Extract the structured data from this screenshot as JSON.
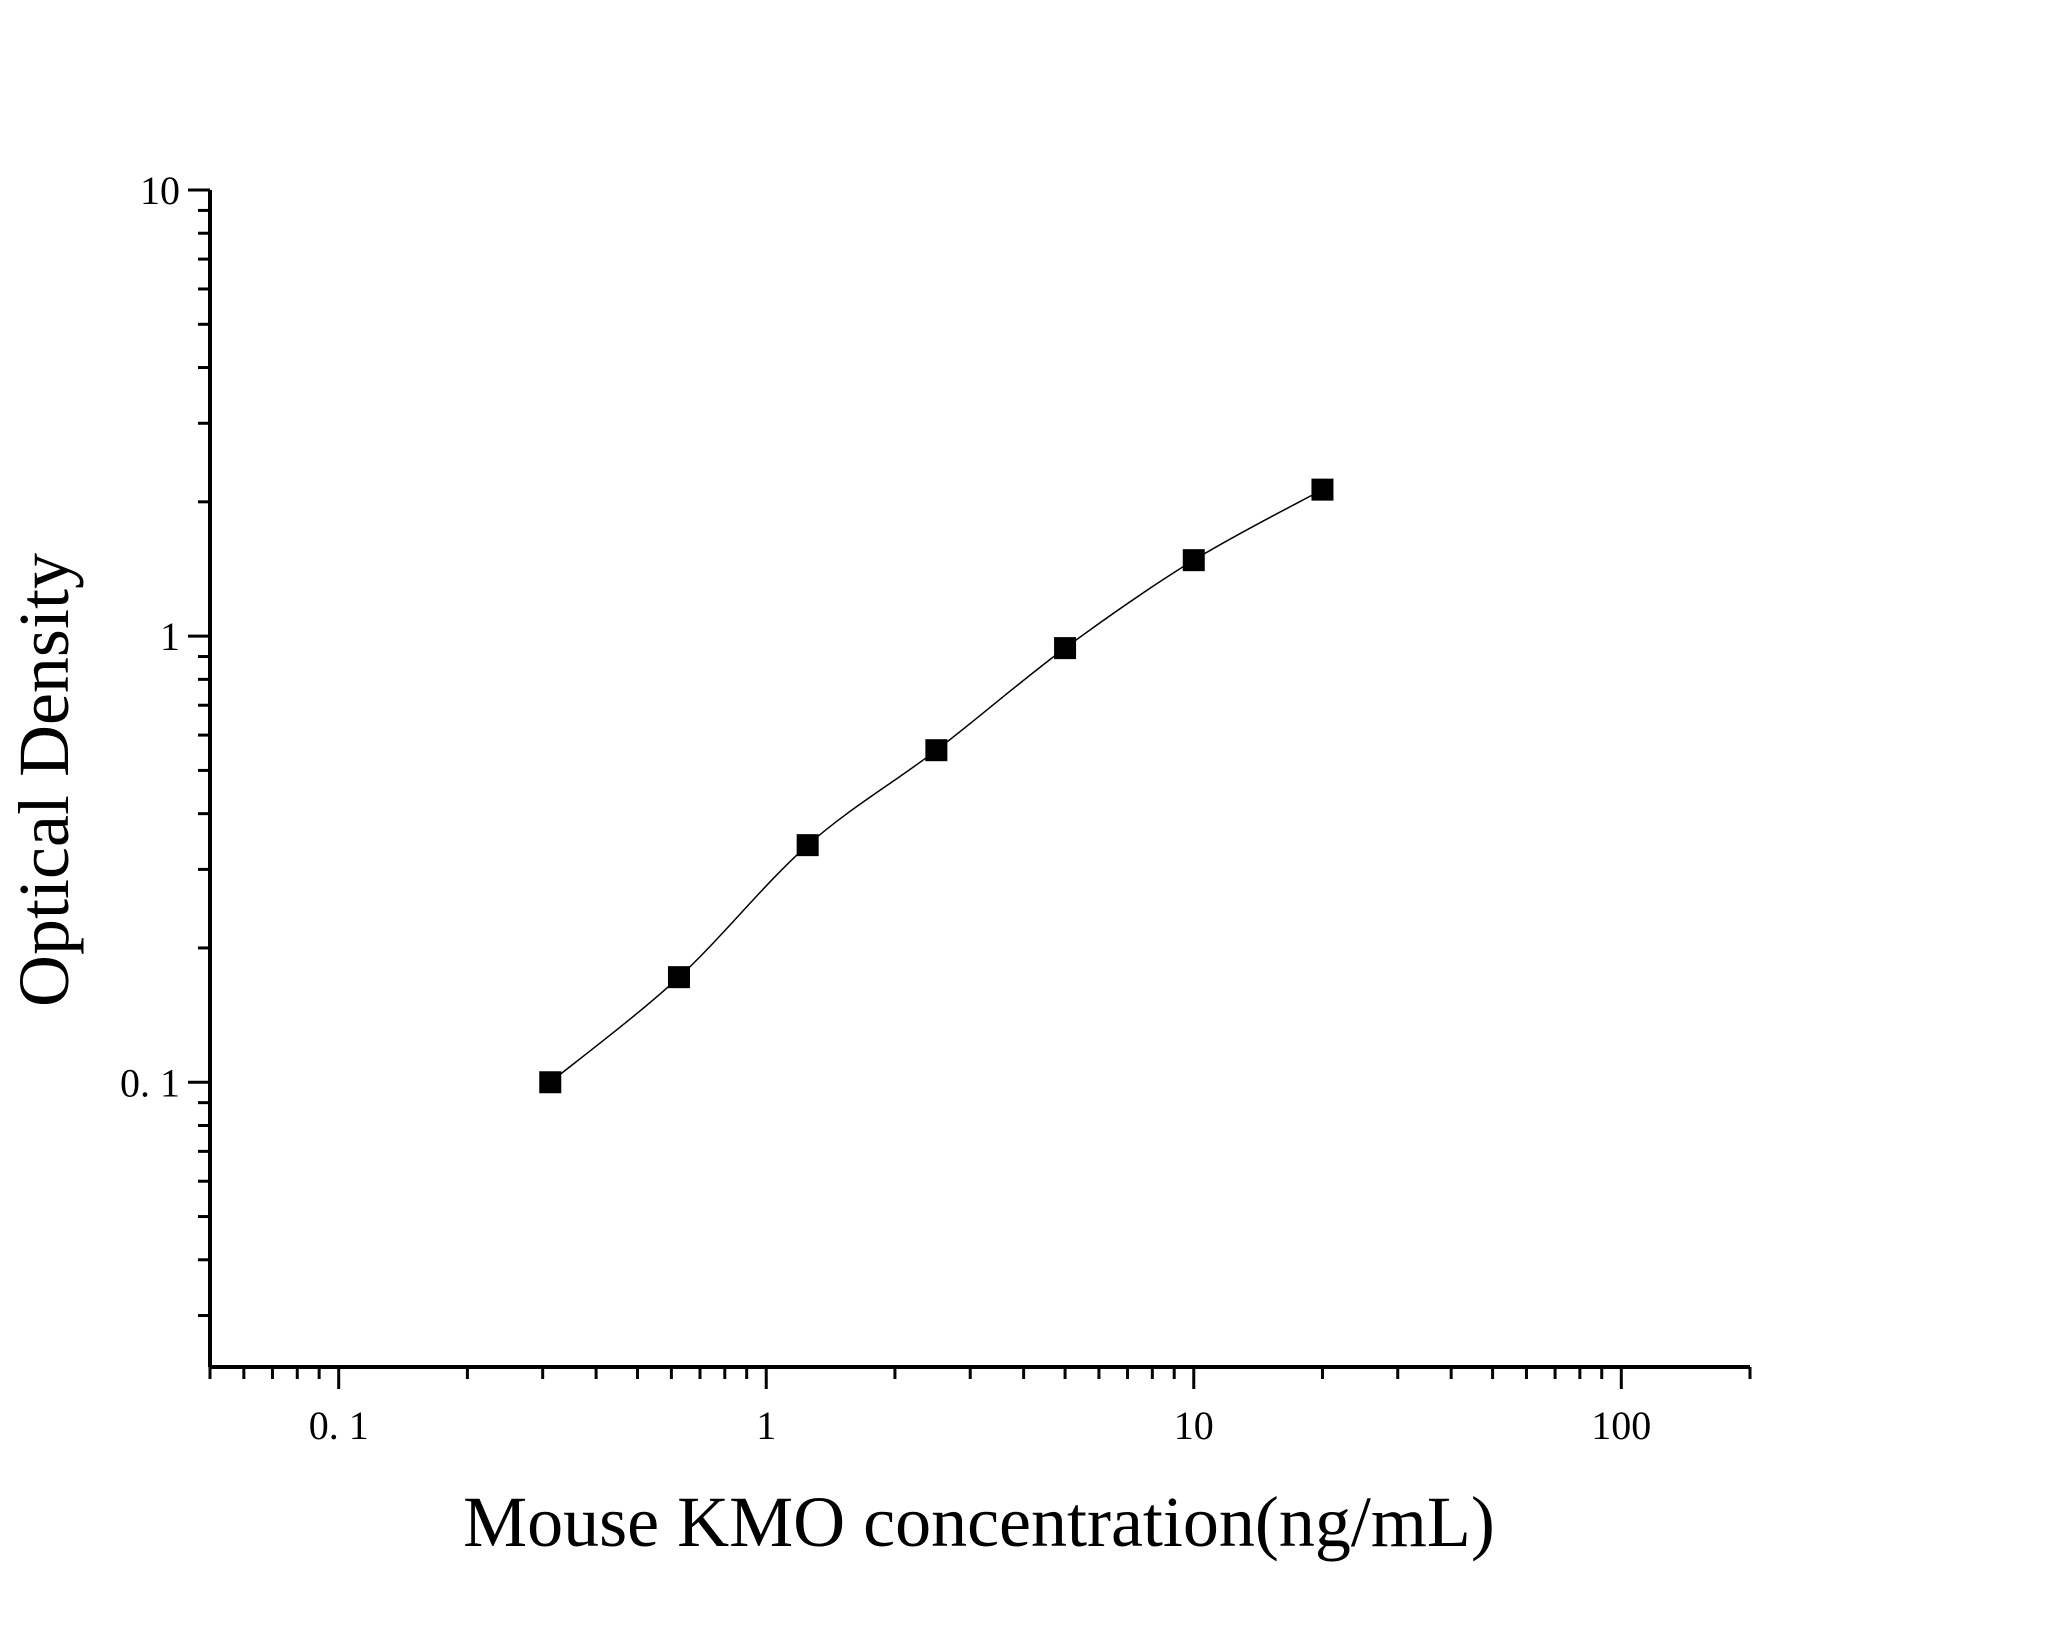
{
  "chart_data": {
    "type": "scatter",
    "title": "",
    "xlabel": "Mouse KMO concentration(ng/mL)",
    "ylabel": "Optical Density",
    "xscale": "log",
    "yscale": "log",
    "xlim": [
      0.05,
      200
    ],
    "ylim": [
      0.023,
      10
    ],
    "x_tick_values": [
      0.1,
      1,
      10,
      100
    ],
    "x_tick_labels": [
      "0. 1",
      "1",
      "10",
      "100"
    ],
    "y_tick_values": [
      0.1,
      1,
      10
    ],
    "y_tick_labels": [
      "0. 1",
      "1",
      "10"
    ],
    "grid": false,
    "legend": "none",
    "series": [
      {
        "x": [
          0.3125,
          0.625,
          1.25,
          2.5,
          5,
          10,
          20
        ],
        "y": [
          0.1,
          0.172,
          0.34,
          0.555,
          0.94,
          1.48,
          2.13
        ],
        "marker": "square",
        "fit_line": true,
        "color": "#000000"
      }
    ]
  }
}
